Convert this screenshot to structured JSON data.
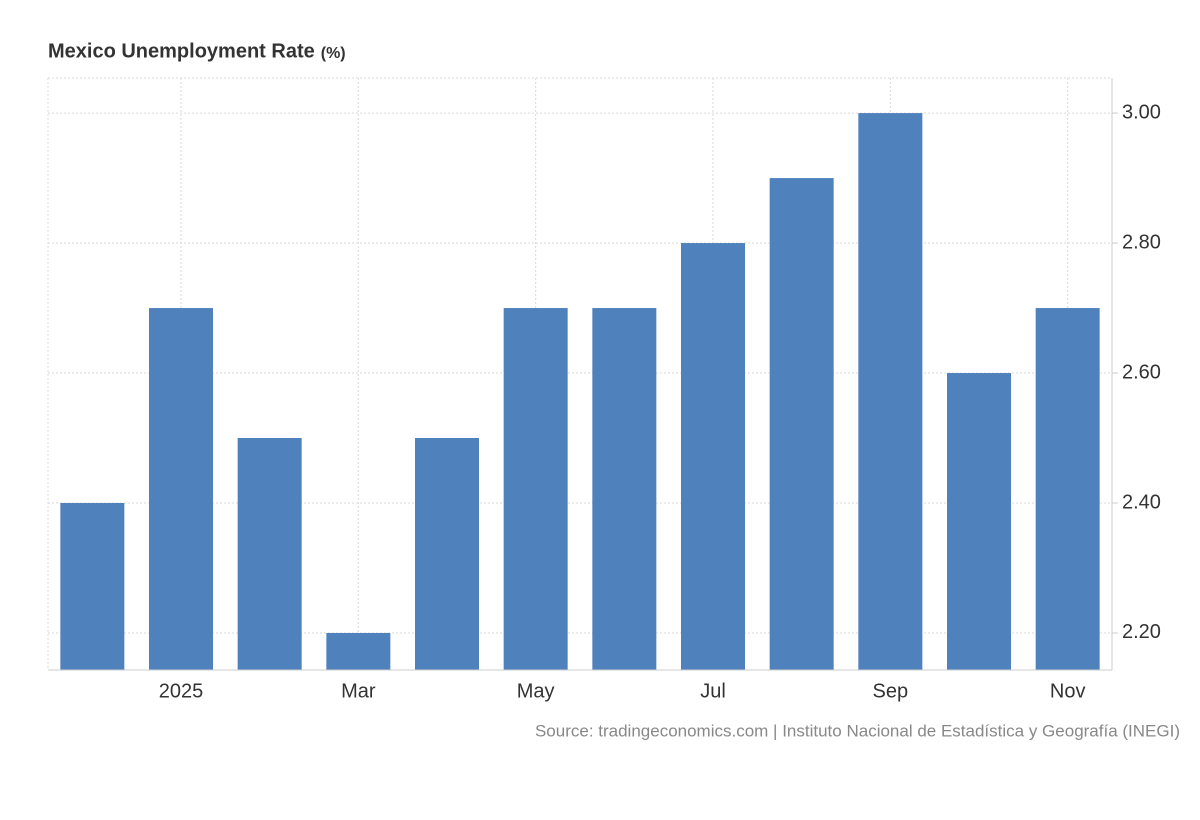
{
  "chart_data": {
    "type": "bar",
    "title": "Mexico Unemployment Rate",
    "unit": "(%)",
    "source": "Source: tradingeconomics.com | Instituto Nacional de Estadística y Geografía (INEGI)",
    "categories": [
      null,
      "2025",
      null,
      "Mar",
      null,
      "May",
      null,
      "Jul",
      null,
      "Sep",
      null,
      "Nov"
    ],
    "values": [
      2.4,
      2.7,
      2.5,
      2.2,
      2.5,
      2.7,
      2.7,
      2.8,
      2.9,
      3.0,
      2.6,
      2.7
    ],
    "color": "#4f81bd",
    "ylim": [
      2.143,
      3.054
    ],
    "yticks": [
      {
        "value": 2.2,
        "label": "2.20"
      },
      {
        "value": 2.4,
        "label": "2.40"
      },
      {
        "value": 2.6,
        "label": "2.60"
      },
      {
        "value": 2.8,
        "label": "2.80"
      },
      {
        "value": 3.0,
        "label": "3.00"
      }
    ],
    "grid": true
  }
}
